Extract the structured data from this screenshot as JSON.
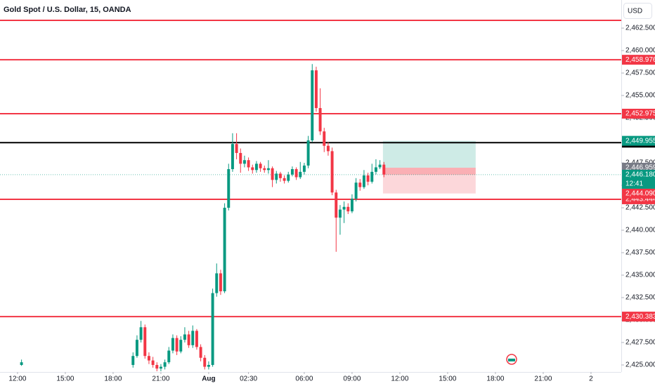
{
  "chart_data": {
    "type": "candlestick",
    "title": "Gold Spot / U.S. Dollar, 15, OANDA",
    "currency": "USD",
    "up_color": "#089981",
    "down_color": "#f23645",
    "x": [
      0.25,
      7.25,
      7.5,
      7.75,
      8.0,
      8.25,
      8.5,
      8.75,
      9.0,
      9.25,
      9.5,
      9.75,
      10.0,
      10.25,
      10.5,
      10.75,
      11.0,
      11.25,
      11.5,
      11.75,
      12.0,
      12.25,
      12.5,
      12.75,
      13.0,
      13.25,
      13.5,
      13.75,
      14.0,
      14.25,
      14.5,
      14.75,
      15.0,
      15.25,
      15.5,
      15.75,
      16.0,
      16.25,
      16.5,
      16.75,
      17.0,
      17.25,
      17.5,
      17.75,
      18.0,
      18.25,
      18.5,
      18.75,
      19.0,
      19.25,
      19.5,
      19.75,
      20.0,
      20.25,
      20.5,
      20.75,
      21.0,
      21.25,
      21.5,
      21.75,
      22.0,
      22.25,
      22.5,
      22.75,
      23.0
    ],
    "open": [
      2425.0,
      2425.0,
      2426.0,
      2427.8,
      2429.2,
      2426.0,
      2425.5,
      2425.0,
      2424.6,
      2424.8,
      2425.3,
      2426.6,
      2428.0,
      2426.5,
      2427.8,
      2428.4,
      2427.2,
      2428.8,
      2427.0,
      2425.8,
      2424.8,
      2425.0,
      2433.0,
      2435.2,
      2433.2,
      2442.5,
      2446.8,
      2449.6,
      2448.6,
      2447.4,
      2447.8,
      2447.0,
      2446.7,
      2447.4,
      2446.9,
      2446.7,
      2446.9,
      2445.6,
      2446.3,
      2445.8,
      2445.5,
      2446.2,
      2446.8,
      2445.9,
      2446.5,
      2447.2,
      2450.0,
      2457.8,
      2453.6,
      2451.0,
      2449.4,
      2448.8,
      2444.2,
      2441.4,
      2442.3,
      2442.6,
      2442.1,
      2443.5,
      2445.3,
      2444.8,
      2446.1,
      2445.4,
      2446.5,
      2447.0,
      2447.3
    ],
    "high": [
      2425.6,
      2426.4,
      2428.3,
      2429.9,
      2429.5,
      2426.4,
      2425.9,
      2425.3,
      2425.1,
      2425.6,
      2427.0,
      2428.4,
      2428.3,
      2428.2,
      2429.2,
      2428.8,
      2429.4,
      2429.0,
      2427.3,
      2426.1,
      2425.4,
      2433.5,
      2436.3,
      2435.6,
      2443.0,
      2447.4,
      2450.8,
      2450.8,
      2449.1,
      2448.3,
      2448.1,
      2447.3,
      2447.7,
      2447.6,
      2447.2,
      2447.8,
      2447.1,
      2446.6,
      2446.5,
      2446.1,
      2446.5,
      2447.1,
      2447.0,
      2447.6,
      2447.5,
      2450.5,
      2458.5,
      2458.2,
      2455.8,
      2451.4,
      2449.8,
      2449.2,
      2444.5,
      2442.8,
      2443.2,
      2443.0,
      2444.0,
      2445.8,
      2445.7,
      2446.7,
      2446.4,
      2447.4,
      2447.9,
      2447.8,
      2447.6
    ],
    "low": [
      2424.9,
      2424.7,
      2425.8,
      2427.5,
      2425.7,
      2425.1,
      2424.7,
      2424.3,
      2424.3,
      2424.5,
      2425.1,
      2426.3,
      2426.1,
      2426.3,
      2427.5,
      2426.9,
      2426.9,
      2426.7,
      2425.4,
      2424.5,
      2424.5,
      2424.8,
      2432.6,
      2432.8,
      2433.0,
      2442.2,
      2446.5,
      2447.9,
      2446.4,
      2447.0,
      2446.6,
      2446.3,
      2446.4,
      2446.5,
      2446.4,
      2446.3,
      2444.8,
      2445.2,
      2445.4,
      2445.2,
      2445.3,
      2446.0,
      2445.6,
      2445.7,
      2446.2,
      2446.9,
      2449.8,
      2453.2,
      2450.6,
      2448.7,
      2448.3,
      2443.9,
      2437.6,
      2439.5,
      2440.8,
      2441.8,
      2441.9,
      2443.2,
      2444.4,
      2444.6,
      2445.0,
      2445.2,
      2446.2,
      2446.8,
      2445.9
    ],
    "close": [
      2425.3,
      2426.0,
      2427.8,
      2429.2,
      2426.0,
      2425.5,
      2425.0,
      2424.6,
      2424.8,
      2425.3,
      2426.6,
      2428.0,
      2426.5,
      2427.8,
      2428.4,
      2427.2,
      2428.8,
      2427.0,
      2425.8,
      2424.8,
      2425.0,
      2433.0,
      2435.2,
      2433.2,
      2442.5,
      2446.8,
      2449.6,
      2448.6,
      2447.4,
      2447.8,
      2447.0,
      2446.7,
      2447.4,
      2446.9,
      2446.7,
      2446.9,
      2445.6,
      2446.3,
      2445.8,
      2445.5,
      2446.2,
      2446.8,
      2445.9,
      2446.5,
      2447.2,
      2450.0,
      2457.8,
      2453.6,
      2451.0,
      2449.4,
      2448.8,
      2444.2,
      2441.4,
      2442.3,
      2442.6,
      2442.1,
      2443.5,
      2445.3,
      2444.8,
      2446.1,
      2445.4,
      2446.5,
      2447.0,
      2447.3,
      2446.2
    ],
    "xlim": [
      -1.1,
      37.9
    ],
    "xticks": [
      {
        "value": 0,
        "label": "12:00"
      },
      {
        "value": 3,
        "label": "15:00"
      },
      {
        "value": 6,
        "label": "18:00"
      },
      {
        "value": 9,
        "label": "21:00"
      },
      {
        "value": 12,
        "label": "Aug"
      },
      {
        "value": 14.5,
        "label": "02:30"
      },
      {
        "value": 18,
        "label": "06:00"
      },
      {
        "value": 21,
        "label": "09:00"
      },
      {
        "value": 24,
        "label": "12:00"
      },
      {
        "value": 27,
        "label": "15:00"
      },
      {
        "value": 30,
        "label": "18:00"
      },
      {
        "value": 33,
        "label": "21:00"
      },
      {
        "value": 36,
        "label": "2"
      }
    ],
    "ylim": [
      2424.22,
      2465.63
    ],
    "yticks": [
      {
        "value": 2425,
        "label": "2,425.000"
      },
      {
        "value": 2427.5,
        "label": "2,427.500"
      },
      {
        "value": 2430,
        "label": "2,430.000"
      },
      {
        "value": 2432.5,
        "label": "2,432.500"
      },
      {
        "value": 2435,
        "label": "2,435.000"
      },
      {
        "value": 2437.5,
        "label": "2,437.500"
      },
      {
        "value": 2440,
        "label": "2,440.000"
      },
      {
        "value": 2442.5,
        "label": "2,442.500"
      },
      {
        "value": 2445,
        "label": "2,445.000"
      },
      {
        "value": 2447.5,
        "label": "2,447.500"
      },
      {
        "value": 2450,
        "label": "2,450.000"
      },
      {
        "value": 2452.5,
        "label": "2,452.500"
      },
      {
        "value": 2455,
        "label": "2,455.000"
      },
      {
        "value": 2457.5,
        "label": "2,457.500"
      },
      {
        "value": 2460,
        "label": "2,460.000"
      },
      {
        "value": 2462.5,
        "label": "2,462.500"
      }
    ],
    "horizontal_lines": {
      "values": [
        2463.36,
        2458.976,
        2452.975,
        2449.749,
        2443.444,
        2430.383
      ],
      "value_labels": [
        null,
        "2,458.976",
        "2,452.975",
        "2,449.749",
        "2,443.444",
        "2,430.383"
      ],
      "colors": [
        "#f23645",
        "#f23645",
        "#f23645",
        "#000000",
        "#f23645",
        "#f23645"
      ]
    },
    "position": {
      "start_x": 22.94,
      "end_x": 28.76,
      "take_profit": 2449.955,
      "take_profit_label": "2,449.955",
      "entry": 2446.959,
      "entry_label": "2,446.959",
      "stop_loss": 2444.09,
      "stop_loss_label": "2,444.090"
    },
    "last_price": {
      "value": 2446.18,
      "label": "2,446.180",
      "countdown": "12:41"
    }
  }
}
